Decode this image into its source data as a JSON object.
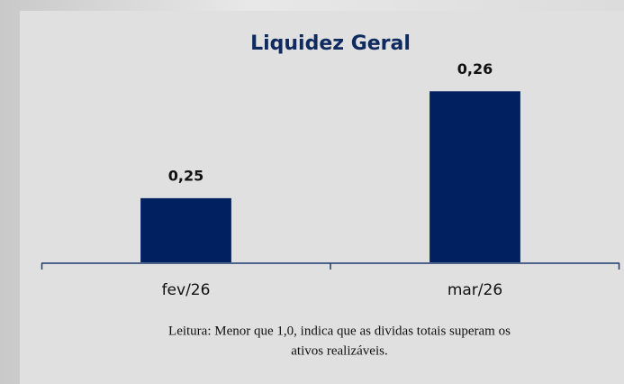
{
  "chart_data": {
    "type": "bar",
    "title": "Liquidez Geral",
    "categories": [
      "fev/26",
      "mar/26"
    ],
    "values": [
      0.25,
      0.26
    ],
    "value_labels": [
      "0,25",
      "0,26"
    ],
    "color": "#002060",
    "ylim": [
      0.244,
      0.2615
    ],
    "note": [
      "Leitura:  Menor que 1,0, indica  que as dividas totais superam os",
      "ativos realizáveis."
    ]
  }
}
